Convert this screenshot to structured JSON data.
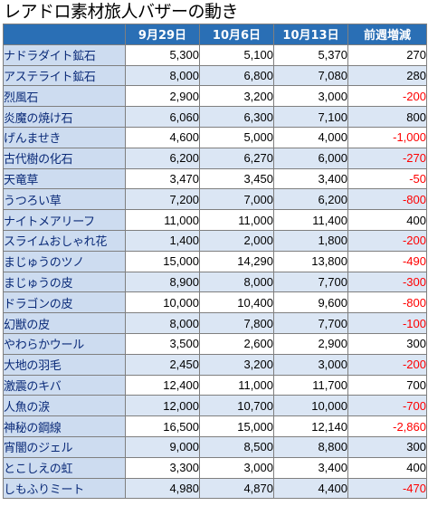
{
  "title": "レアドロ素材旅人バザーの動き",
  "headers": [
    "9月29日",
    "10月6日",
    "10月13日",
    "前週増減"
  ],
  "colors": {
    "header_bg": "#2a6fb5",
    "name_bg": "#cddcf0",
    "negative": "#ff0000"
  },
  "rows": [
    {
      "name": "ナドラダイト鉱石",
      "d1": "5,300",
      "d2": "5,100",
      "d3": "5,370",
      "change": "270",
      "neg": false
    },
    {
      "name": "アステライト鉱石",
      "d1": "8,000",
      "d2": "6,800",
      "d3": "7,080",
      "change": "280",
      "neg": false
    },
    {
      "name": "烈風石",
      "d1": "2,900",
      "d2": "3,200",
      "d3": "3,000",
      "change": "-200",
      "neg": true
    },
    {
      "name": "炎魔の焼け石",
      "d1": "6,060",
      "d2": "6,300",
      "d3": "7,100",
      "change": "800",
      "neg": false
    },
    {
      "name": "げんませき",
      "d1": "4,600",
      "d2": "5,000",
      "d3": "4,000",
      "change": "-1,000",
      "neg": true
    },
    {
      "name": "古代樹の化石",
      "d1": "6,200",
      "d2": "6,270",
      "d3": "6,000",
      "change": "-270",
      "neg": true
    },
    {
      "name": "天竜草",
      "d1": "3,470",
      "d2": "3,450",
      "d3": "3,400",
      "change": "-50",
      "neg": true
    },
    {
      "name": "うつろい草",
      "d1": "7,200",
      "d2": "7,000",
      "d3": "6,200",
      "change": "-800",
      "neg": true
    },
    {
      "name": "ナイトメアリーフ",
      "d1": "11,000",
      "d2": "11,000",
      "d3": "11,400",
      "change": "400",
      "neg": false
    },
    {
      "name": "スライムおしゃれ花",
      "d1": "1,400",
      "d2": "2,000",
      "d3": "1,800",
      "change": "-200",
      "neg": true
    },
    {
      "name": "まじゅうのツノ",
      "d1": "15,000",
      "d2": "14,290",
      "d3": "13,800",
      "change": "-490",
      "neg": true
    },
    {
      "name": "まじゅうの皮",
      "d1": "8,900",
      "d2": "8,000",
      "d3": "7,700",
      "change": "-300",
      "neg": true
    },
    {
      "name": "ドラゴンの皮",
      "d1": "10,000",
      "d2": "10,400",
      "d3": "9,600",
      "change": "-800",
      "neg": true
    },
    {
      "name": "幻獣の皮",
      "d1": "8,000",
      "d2": "7,800",
      "d3": "7,700",
      "change": "-100",
      "neg": true
    },
    {
      "name": "やわらかウール",
      "d1": "3,500",
      "d2": "2,600",
      "d3": "2,900",
      "change": "300",
      "neg": false
    },
    {
      "name": "大地の羽毛",
      "d1": "2,450",
      "d2": "3,200",
      "d3": "3,000",
      "change": "-200",
      "neg": true
    },
    {
      "name": "激震のキバ",
      "d1": "12,400",
      "d2": "11,000",
      "d3": "11,700",
      "change": "700",
      "neg": false
    },
    {
      "name": "人魚の涙",
      "d1": "12,000",
      "d2": "10,700",
      "d3": "10,000",
      "change": "-700",
      "neg": true
    },
    {
      "name": "神秘の鋼線",
      "d1": "16,500",
      "d2": "15,000",
      "d3": "12,140",
      "change": "-2,860",
      "neg": true
    },
    {
      "name": "宵闇のジェル",
      "d1": "9,000",
      "d2": "8,500",
      "d3": "8,800",
      "change": "300",
      "neg": false
    },
    {
      "name": "とこしえの虹",
      "d1": "3,300",
      "d2": "3,000",
      "d3": "3,400",
      "change": "400",
      "neg": false
    },
    {
      "name": "しもふりミート",
      "d1": "4,980",
      "d2": "4,870",
      "d3": "4,400",
      "change": "-470",
      "neg": true
    }
  ]
}
